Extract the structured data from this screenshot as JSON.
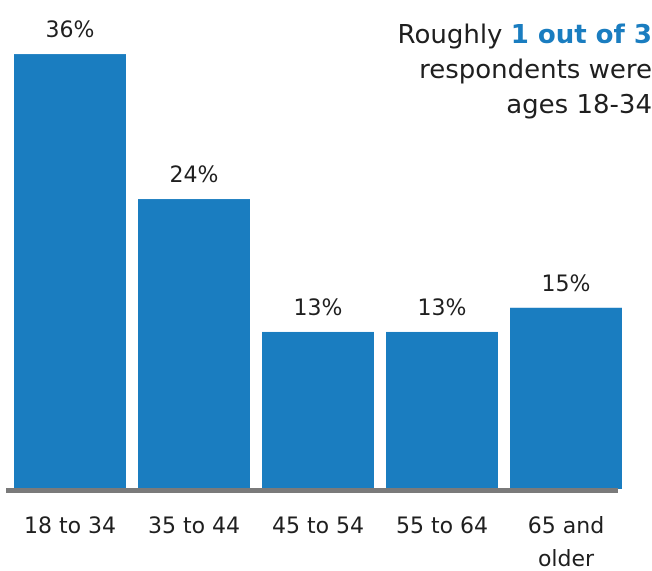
{
  "chart_data": {
    "type": "bar",
    "categories": [
      "18 to 34",
      "35 to 44",
      "45 to 54",
      "55 to 64",
      "65 and older"
    ],
    "values": [
      36,
      24,
      13,
      13,
      15
    ],
    "data_labels": [
      "36%",
      "24%",
      "13%",
      "13%",
      "15%"
    ],
    "ylim": [
      0,
      37
    ],
    "grid": false,
    "bar_color": "#1a7dc0",
    "axis_color": "#7a7a7a",
    "annotation": {
      "line1_prefix": "Roughly ",
      "line1_strong": "1 out of 3",
      "line2": "respondents were",
      "line3": "ages 18-34"
    }
  }
}
